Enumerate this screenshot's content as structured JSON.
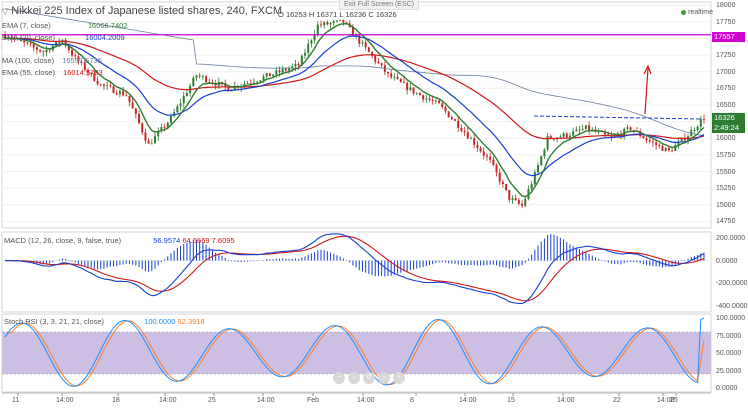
{
  "header": {
    "title": "Nikkei 225 Index of Japanese listed shares, 240, FXCM",
    "ohlc": {
      "o_label": "O",
      "o": "16253",
      "h_label": "H",
      "h": "16371",
      "l_label": "L",
      "l": "16236",
      "c_label": "C",
      "c": "16326"
    },
    "indicators": [
      {
        "label": "EMA (7, close)",
        "value": "16066.7402",
        "color": "#2e7d32"
      },
      {
        "label": "EMA (20, close)",
        "value": "16004.2009",
        "color": "#1a3fd0"
      },
      {
        "label": "MA (100, close)",
        "value": "16597.5735",
        "color": "#6a7fa0"
      },
      {
        "label": "EMA (55, close)",
        "value": "16014.5793",
        "color": "#d01818"
      }
    ]
  },
  "exit_full_screen": "Exit Full Screen (ESC)",
  "realtime": "realtime",
  "price_axis": {
    "ticks": [
      "18000",
      "17750",
      "17500",
      "17250",
      "17000",
      "16750",
      "16500",
      "16250",
      "16000",
      "15750",
      "15500",
      "15250",
      "15000",
      "14750"
    ],
    "ymin": 14650,
    "ymax": 18050,
    "current_price": "16326",
    "countdown": "2:49:24",
    "hline_label": "17557"
  },
  "macd": {
    "label": "MACD (12, 26, close, 9, false, true)",
    "values": [
      "56.9574",
      "64.5669",
      "7.6095"
    ],
    "colors": [
      "#1a3fd0",
      "#d01818",
      "#d01818"
    ],
    "ticks": [
      "200.0000",
      "0.0000",
      "-200.0000",
      "-400.0000"
    ]
  },
  "stoch": {
    "label": "Stoch RSI (3, 3, 21, 21, close)",
    "values": [
      "100.0000",
      "92.3918"
    ],
    "colors": [
      "#1e90ff",
      "#ff7f27"
    ],
    "ticks": [
      "100.0000",
      "75.0000",
      "50.0000",
      "25.0000",
      "0.0000"
    ]
  },
  "time_axis": {
    "labels": [
      "11",
      "14:00",
      "18",
      "14:00",
      "25",
      "14:00",
      "Feb",
      "14:00",
      "8",
      "14:00",
      "15",
      "14:00",
      "22",
      "14:00",
      "25"
    ]
  },
  "colors": {
    "ema7": "#2e7d32",
    "ema20": "#1a3fd0",
    "ema55": "#d01818",
    "ma100": "#6a7fa0",
    "hline": "#d000d0",
    "up": "#2e7d32",
    "down": "#c62828",
    "stochfill": "#c8b8e0"
  },
  "toolbar_icons": [
    "zoom-out-icon",
    "back-icon",
    "forward-icon",
    "zoom-in-icon",
    "reset-icon"
  ]
}
